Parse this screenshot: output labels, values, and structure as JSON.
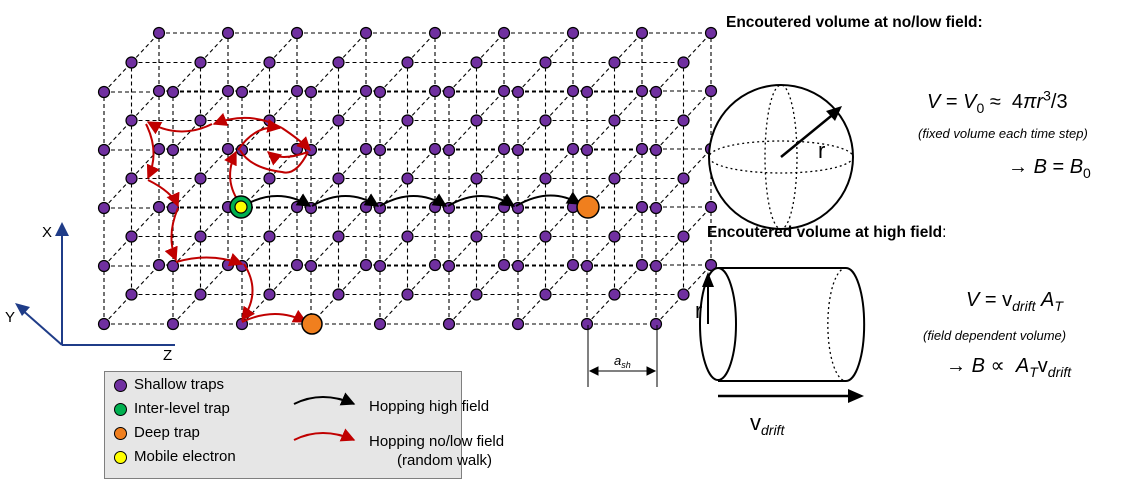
{
  "axes": {
    "x_label": "X",
    "y_label": "Y",
    "z_label": "Z"
  },
  "lattice_spacing": {
    "base": "a",
    "sub": "sh"
  },
  "legend": {
    "shallow": "Shallow traps",
    "inter_level": "Inter-level trap",
    "deep": "Deep trap",
    "mobile": "Mobile electron",
    "high_field": "Hopping high field",
    "low_field_line1": "Hopping no/low field",
    "low_field_line2": "(random walk)"
  },
  "low_field": {
    "heading": "Encoutered volume at no/low field:",
    "radius_label": "r",
    "note": "(fixed volume each time step)"
  },
  "high_field": {
    "heading": "Encoutered volume at high field",
    "heading_colon": ":",
    "radius_label": "r",
    "note": "(field dependent volume)",
    "drift_v": "v",
    "drift_sub": "drift"
  },
  "colors": {
    "shallow": "#7030a0",
    "inter_level": "#00b050",
    "deep": "#f07f1e",
    "mobile": "#ffff00",
    "high_field_arrow": "#000000",
    "low_field_arrow": "#c00000"
  }
}
